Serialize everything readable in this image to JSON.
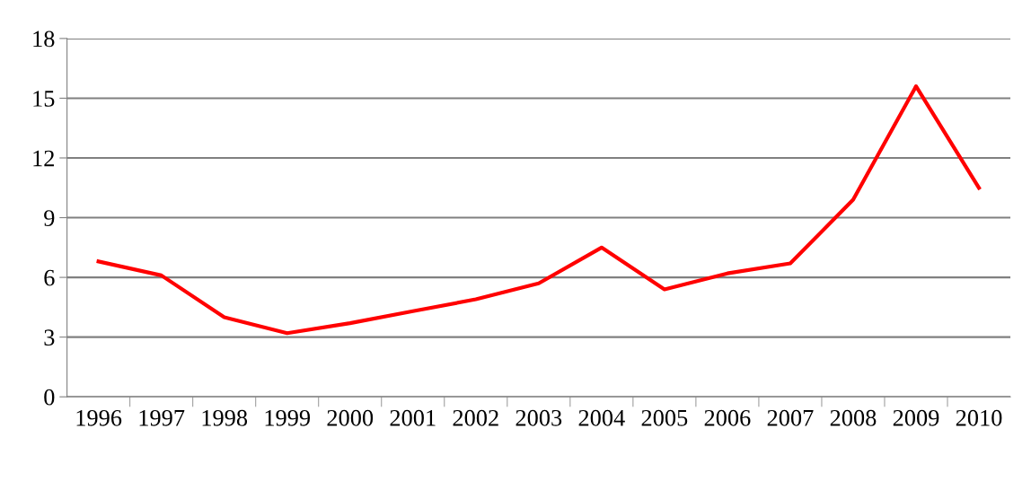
{
  "chart_data": {
    "type": "line",
    "categories": [
      "1996",
      "1997",
      "1998",
      "1999",
      "2000",
      "2001",
      "2002",
      "2003",
      "2004",
      "2005",
      "2006",
      "2007",
      "2008",
      "2009",
      "2010"
    ],
    "series": [
      {
        "color": "#ff0000",
        "values": [
          6.8,
          6.1,
          4.0,
          3.2,
          3.7,
          4.3,
          4.9,
          5.7,
          7.5,
          5.4,
          6.2,
          6.7,
          9.9,
          15.6,
          10.5
        ]
      }
    ],
    "ylim": [
      0,
      18
    ],
    "yticks": [
      0,
      3,
      6,
      9,
      12,
      15,
      18
    ],
    "grid": "y",
    "legend": false,
    "marker": "none",
    "line_style": "solid"
  }
}
